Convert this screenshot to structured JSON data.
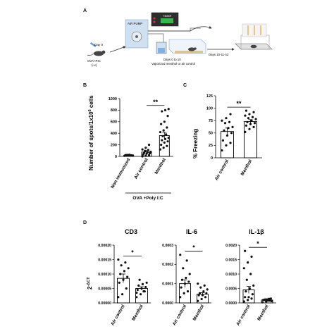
{
  "panels": {
    "a": "A",
    "b": "B",
    "c": "C",
    "d": "D"
  },
  "schematic": {
    "day0": "Day 0",
    "immunization_line1": "OVA+PIC",
    "immunization_line2": "(i.v)",
    "air_pump": "AIR PUMP",
    "timer": "TIMER",
    "exposure_line1": "Days 0 to 10",
    "exposure_line2": "Vaporized menthol or air control",
    "test_days": "Days 10-11-12"
  },
  "group_label": "OVA +Poly I:C",
  "colors": {
    "bar_fill": "#ffffff",
    "bar_stroke": "#000000",
    "dot": "#111111"
  },
  "chart_data": [
    {
      "id": "B",
      "type": "bar",
      "ylabel": "Number of spots/1x10^6 cells",
      "ylabel_main": "Number of spots/1x10",
      "ylabel_sup": "6",
      "ylabel_tail": " cells",
      "ylim": [
        0,
        1000
      ],
      "yticks": [
        0,
        200,
        400,
        600,
        800,
        1000
      ],
      "ytick_labels": [
        "0",
        "200",
        "400",
        "600",
        "800",
        "1000"
      ],
      "categories": [
        "Non immunized",
        "Air control",
        "Menthol"
      ],
      "values": [
        20,
        75,
        360
      ],
      "errors": [
        5,
        25,
        55
      ],
      "points": [
        [
          10,
          14,
          18,
          22,
          25,
          12,
          20,
          28,
          16,
          24
        ],
        [
          0,
          10,
          20,
          35,
          45,
          55,
          60,
          70,
          80,
          95,
          110,
          120,
          150,
          200
        ],
        [
          120,
          150,
          180,
          200,
          240,
          260,
          280,
          300,
          320,
          350,
          380,
          420,
          450,
          500,
          560,
          600,
          700,
          780,
          800,
          820
        ]
      ],
      "significance": [
        {
          "from": 1,
          "to": 2,
          "label": "**"
        }
      ]
    },
    {
      "id": "C",
      "type": "bar",
      "ylabel": "% Freezing",
      "ylim": [
        0,
        125
      ],
      "yticks": [
        0,
        25,
        50,
        75,
        100,
        125
      ],
      "ytick_labels": [
        "0",
        "25",
        "50",
        "75",
        "100",
        "125"
      ],
      "categories": [
        "Air control",
        "Menthol"
      ],
      "values": [
        53,
        73
      ],
      "errors": [
        7,
        4
      ],
      "points": [
        [
          15,
          25,
          30,
          35,
          45,
          50,
          55,
          60,
          62,
          70,
          72,
          75,
          80,
          88
        ],
        [
          52,
          58,
          62,
          65,
          68,
          70,
          72,
          75,
          78,
          80,
          82,
          85,
          88,
          92,
          95
        ]
      ],
      "significance": [
        {
          "from": 0,
          "to": 1,
          "label": "**"
        }
      ]
    },
    {
      "id": "D1",
      "type": "bar",
      "title": "CD3",
      "ylabel": "2^-ΔCT",
      "ylabel_main": "2",
      "ylabel_sup": "-ΔCT",
      "ylim": [
        0,
        0.0002
      ],
      "yticks": [
        0,
        5e-05,
        0.0001,
        0.00015,
        0.0002
      ],
      "ytick_labels": [
        "0.00000",
        "0.00005",
        "0.00010",
        "0.00015",
        "0.00020"
      ],
      "categories": [
        "Air control",
        "Menthol"
      ],
      "values": [
        8.5e-05,
        5e-05
      ],
      "errors": [
        1.5e-05,
        6e-06
      ],
      "points": [
        [
          2e-05,
          3e-05,
          5e-05,
          7e-05,
          8e-05,
          9e-05,
          0.0001,
          0.00011,
          0.00012,
          0.00013,
          0.00014,
          0.00015
        ],
        [
          2e-05,
          3e-05,
          4e-05,
          4.5e-05,
          5e-05,
          5.5e-05,
          6e-05,
          6.5e-05,
          7e-05,
          8e-05,
          4e-05,
          3.5e-05
        ]
      ],
      "significance": [
        {
          "from": 0,
          "to": 1,
          "label": "*"
        }
      ]
    },
    {
      "id": "D2",
      "type": "bar",
      "title": "IL-6",
      "ylim": [
        0,
        0.0003
      ],
      "yticks": [
        0,
        0.0001,
        0.0002,
        0.0003
      ],
      "ytick_labels": [
        "0.0000",
        "0.0001",
        "0.0002",
        "0.0003"
      ],
      "categories": [
        "Air control",
        "Menthol"
      ],
      "values": [
        0.0001,
        4.5e-05
      ],
      "errors": [
        2e-05,
        8e-06
      ],
      "points": [
        [
          3e-05,
          5e-05,
          6e-05,
          8e-05,
          0.0001,
          0.00011,
          0.00012,
          0.00013,
          0.00015,
          0.00018,
          0.00022,
          0.00025
        ],
        [
          1e-05,
          2e-05,
          3e-05,
          4e-05,
          4e-05,
          5e-05,
          5e-05,
          6e-05,
          7e-05,
          8e-05,
          9e-05,
          0.0001
        ]
      ],
      "significance": [
        {
          "from": 0,
          "to": 1,
          "label": "*"
        }
      ]
    },
    {
      "id": "D3",
      "type": "bar",
      "title": "IL-1β",
      "ylim": [
        0,
        0.002
      ],
      "yticks": [
        0,
        0.0005,
        0.001,
        0.0015,
        0.002
      ],
      "ytick_labels": [
        "0.0000",
        "0.0005",
        "0.0010",
        "0.0015",
        "0.0020"
      ],
      "categories": [
        "Air control",
        "Menthol"
      ],
      "values": [
        0.00045,
        0.0001
      ],
      "errors": [
        0.00012,
        2e-05
      ],
      "points": [
        [
          5e-05,
          0.0001,
          0.00015,
          0.0002,
          0.0002,
          0.0003,
          0.0004,
          0.0005,
          0.0006,
          0.0008,
          0.001,
          0.0012,
          0.0014,
          0.0016,
          0.0018
        ],
        [
          2e-05,
          5e-05,
          8e-05,
          0.0001,
          0.00012,
          0.00015,
          0.0001,
          8e-05,
          6e-05,
          0.00012,
          0.00014
        ]
      ],
      "significance": [
        {
          "from": 0,
          "to": 1,
          "label": "*"
        }
      ]
    }
  ]
}
